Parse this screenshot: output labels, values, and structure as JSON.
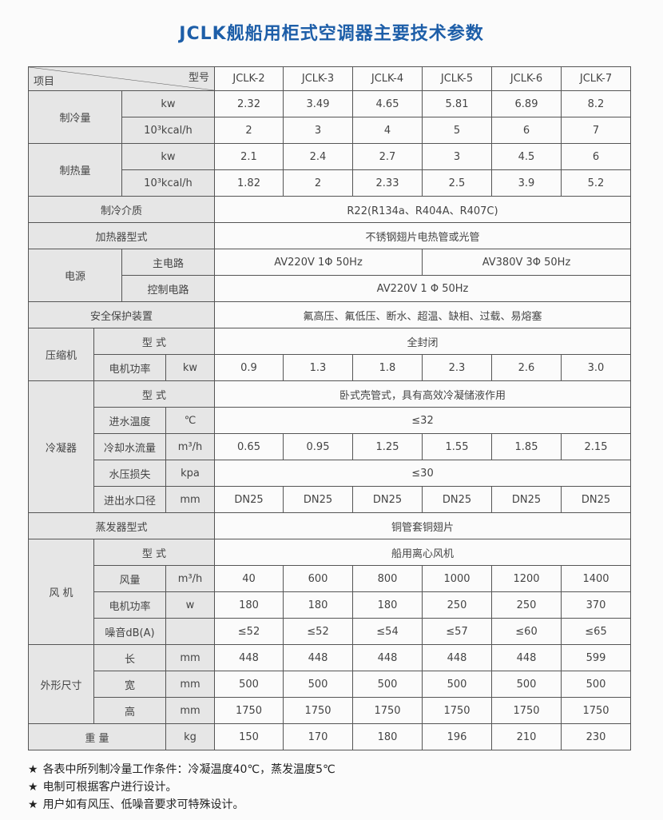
{
  "title": "JCLK舰船用柜式空调器主要技术参数",
  "colors": {
    "title": "#1d5ea8",
    "label_bg": "#e6e6e6",
    "border": "#555555"
  },
  "table": {
    "header": {
      "item_label": "项目",
      "model_label": "型号",
      "models": [
        "JCLK-2",
        "JCLK-3",
        "JCLK-4",
        "JCLK-5",
        "JCLK-6",
        "JCLK-7"
      ]
    },
    "rows": [
      [
        "制冷量",
        "kw",
        "2.32",
        "3.49",
        "4.65",
        "5.81",
        "6.89",
        "8.2"
      ],
      [
        "10³kcal/h",
        "2",
        "3",
        "4",
        "5",
        "6",
        "7"
      ],
      [
        "制热量",
        "kw",
        "2.1",
        "2.4",
        "2.7",
        "3",
        "4.5",
        "6"
      ],
      [
        "10³kcal/h",
        "1.82",
        "2",
        "2.33",
        "2.5",
        "3.9",
        "5.2"
      ],
      [
        "制冷介质",
        "R22(R134a、R404A、R407C)"
      ],
      [
        "加热器型式",
        "不锈钢翅片电热管或光管"
      ],
      [
        "电源",
        "主电路",
        "AV220V 1Φ 50Hz",
        "AV380V 3Φ 50Hz"
      ],
      [
        "控制电路",
        "AV220V 1 Φ 50Hz"
      ],
      [
        "安全保护装置",
        "氟高压、氟低压、断水、超温、缺相、过载、易熔塞"
      ],
      [
        "压缩机",
        "型 式",
        "全封闭"
      ],
      [
        "电机功率",
        "kw",
        "0.9",
        "1.3",
        "1.8",
        "2.3",
        "2.6",
        "3.0"
      ],
      [
        "冷凝器",
        "型 式",
        "卧式壳管式，具有高效冷凝储液作用"
      ],
      [
        "进水温度",
        "℃",
        "≤32"
      ],
      [
        "冷却水流量",
        "m³/h",
        "0.65",
        "0.95",
        "1.25",
        "1.55",
        "1.85",
        "2.15"
      ],
      [
        "水压损失",
        "kpa",
        "≤30"
      ],
      [
        "进出水口径",
        "mm",
        "DN25",
        "DN25",
        "DN25",
        "DN25",
        "DN25",
        "DN25"
      ],
      [
        "蒸发器型式",
        "铜管套铜翅片"
      ],
      [
        "风 机",
        "型 式",
        "船用离心风机"
      ],
      [
        "风量",
        "m³/h",
        "40",
        "600",
        "800",
        "1000",
        "1200",
        "1400"
      ],
      [
        "电机功率",
        "w",
        "180",
        "180",
        "180",
        "250",
        "250",
        "370"
      ],
      [
        "噪音dB(A)",
        "",
        "≤52",
        "≤52",
        "≤54",
        "≤57",
        "≤60",
        "≤65"
      ],
      [
        "外形尺寸",
        "长",
        "mm",
        "448",
        "448",
        "448",
        "448",
        "448",
        "599"
      ],
      [
        "宽",
        "mm",
        "500",
        "500",
        "500",
        "500",
        "500",
        "500"
      ],
      [
        "高",
        "mm",
        "1750",
        "1750",
        "1750",
        "1750",
        "1750",
        "1750"
      ],
      [
        "重 量",
        "kg",
        "150",
        "170",
        "180",
        "196",
        "210",
        "230"
      ]
    ]
  },
  "notes": [
    "各表中所列制冷量工作条件：冷凝温度40℃，蒸发温度5℃",
    "电制可根据客户进行设计。",
    "用户如有风压、低噪音要求可特殊设计。"
  ],
  "note_bullet": "★"
}
